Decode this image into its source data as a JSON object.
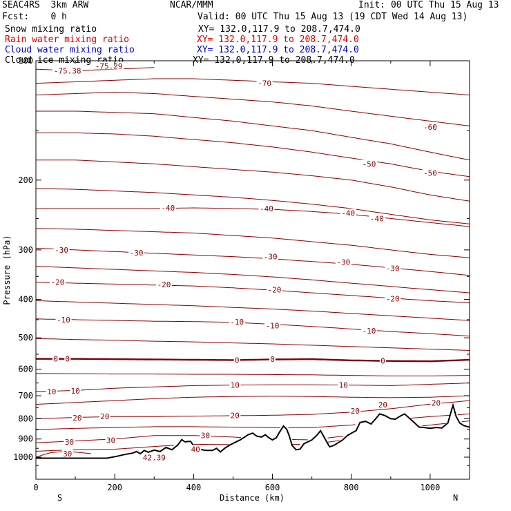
{
  "header": {
    "model": "SEAC4RS  3km ARW",
    "org": "NCAR/MMM",
    "init": "Init: 00 UTC Thu 15 Aug 13",
    "fcst": "Fcst:    0 h",
    "valid": "Valid: 00 UTC Thu 15 Aug 13 (19 CDT Wed 14 Aug 13)",
    "fields": [
      {
        "label": "Snow mixing ratio",
        "xy": "XY= 132.0,117.9 to 208.7,474.0",
        "color": "#000000"
      },
      {
        "label": "Rain water mixing ratio",
        "xy": "XY= 132.0,117.9 to 208.7,474.0",
        "color": "#e00000"
      },
      {
        "label": "Cloud water mixing ratio",
        "xy": "XY= 132.0,117.9 to 208.7,474.0",
        "color": "#0000c8"
      },
      {
        "label": "Cloud ice mixing ratio",
        "xy": "XY= 132.0,117.9 to 208.7,474.0",
        "color": "#000000"
      }
    ]
  },
  "chart_data": {
    "type": "line",
    "xlabel": "Distance (km)",
    "ylabel": "Pressure (hPa)",
    "xlim": [
      0,
      1100
    ],
    "ylim": [
      1050,
      100
    ],
    "y_scale": "log",
    "x_ticks": [
      0,
      200,
      400,
      600,
      800,
      1000
    ],
    "y_ticks": [
      100,
      200,
      300,
      400,
      500,
      600,
      700,
      800,
      900,
      1000
    ],
    "end_labels": {
      "left": "S",
      "right": "N"
    },
    "contour_color": "#8b0000",
    "zero_isotherm_color": "#7a0000",
    "terrain_color": "#000000",
    "isotherm_labels": [
      {
        "text": "-75.38",
        "x": 80,
        "p": 106
      },
      {
        "text": "-75.29",
        "x": 185,
        "p": 103
      },
      {
        "text": "-70",
        "x": 580,
        "p": 114
      },
      {
        "text": "-60",
        "x": 1000,
        "p": 147
      },
      {
        "text": "-50",
        "x": 845,
        "p": 182
      },
      {
        "text": "-50",
        "x": 1000,
        "p": 192
      },
      {
        "text": "-40",
        "x": 335,
        "p": 235
      },
      {
        "text": "-40",
        "x": 585,
        "p": 236
      },
      {
        "text": "-40",
        "x": 792,
        "p": 242
      },
      {
        "text": "-40",
        "x": 865,
        "p": 250
      },
      {
        "text": "-30",
        "x": 65,
        "p": 300
      },
      {
        "text": "-30",
        "x": 255,
        "p": 305
      },
      {
        "text": "-30",
        "x": 595,
        "p": 312
      },
      {
        "text": "-30",
        "x": 780,
        "p": 322
      },
      {
        "text": "-30",
        "x": 905,
        "p": 334
      },
      {
        "text": "-20",
        "x": 55,
        "p": 362
      },
      {
        "text": "-20",
        "x": 325,
        "p": 367
      },
      {
        "text": "-20",
        "x": 605,
        "p": 378
      },
      {
        "text": "-20",
        "x": 905,
        "p": 398
      },
      {
        "text": "-10",
        "x": 70,
        "p": 450
      },
      {
        "text": "-10",
        "x": 510,
        "p": 456
      },
      {
        "text": "-10",
        "x": 600,
        "p": 466
      },
      {
        "text": "-10",
        "x": 845,
        "p": 480
      },
      {
        "text": "0",
        "x": 50,
        "p": 565
      },
      {
        "text": "0",
        "x": 80,
        "p": 565
      },
      {
        "text": "0",
        "x": 510,
        "p": 569
      },
      {
        "text": "0",
        "x": 600,
        "p": 566
      },
      {
        "text": "0",
        "x": 880,
        "p": 572
      },
      {
        "text": "10",
        "x": 505,
        "p": 658
      },
      {
        "text": "10",
        "x": 780,
        "p": 658
      },
      {
        "text": "10",
        "x": 40,
        "p": 683
      },
      {
        "text": "10",
        "x": 100,
        "p": 680
      },
      {
        "text": "20",
        "x": 175,
        "p": 790
      },
      {
        "text": "20",
        "x": 105,
        "p": 795
      },
      {
        "text": "20",
        "x": 505,
        "p": 785
      },
      {
        "text": "20",
        "x": 810,
        "p": 764
      },
      {
        "text": "20",
        "x": 880,
        "p": 737
      },
      {
        "text": "20",
        "x": 1015,
        "p": 730
      },
      {
        "text": "30",
        "x": 430,
        "p": 882
      },
      {
        "text": "30",
        "x": 190,
        "p": 907
      },
      {
        "text": "30",
        "x": 85,
        "p": 915
      },
      {
        "text": "30",
        "x": 80,
        "p": 980
      },
      {
        "text": "40",
        "x": 405,
        "p": 955
      },
      {
        "text": "42.39",
        "x": 300,
        "p": 1002
      }
    ]
  }
}
